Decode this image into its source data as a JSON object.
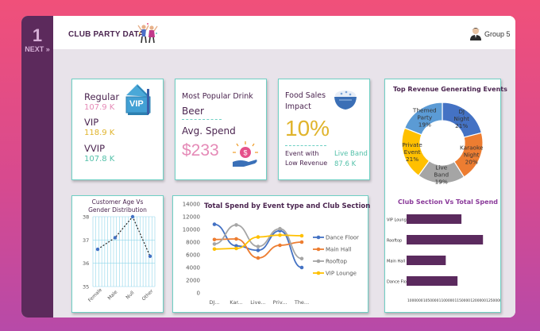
{
  "rail": {
    "number": "1",
    "next_label": "NEXT »"
  },
  "header": {
    "title": "CLUB PARTY DATA",
    "group_label": "Group 5"
  },
  "tiers": [
    {
      "label": "Regular",
      "value": "107.9 K",
      "color": "#e58ab7"
    },
    {
      "label": "VIP",
      "value": "118.9 K",
      "color": "#e0b42c"
    },
    {
      "label": "VVIP",
      "value": "107.8 K",
      "color": "#52c0a8"
    }
  ],
  "vip_sign": "VIP",
  "drink": {
    "title": "Most Popular Drink",
    "value": "Beer",
    "spend_label": "Avg. Spend",
    "spend_value": "$233"
  },
  "food": {
    "title": "Food Sales Impact",
    "percent": "10%",
    "low_label": "Event with Low Revenue",
    "event": "Live Band",
    "event_value": "87.6 K"
  },
  "colors": {
    "accent_teal": "#6fd0c4",
    "purple": "#5c2a5c",
    "bar_purple": "#5b2a5e"
  },
  "chart_data": [
    {
      "type": "pie",
      "title": "Top Revenue Generating Events",
      "slices": [
        {
          "label": "DJ Night",
          "percent": "21%",
          "value": 21,
          "color": "#4472c4"
        },
        {
          "label": "Karaoke Night",
          "percent": "20%",
          "value": 20,
          "color": "#ed7d31"
        },
        {
          "label": "Live Band",
          "percent": "19%",
          "value": 19,
          "color": "#a5a5a5"
        },
        {
          "label": "Private Event",
          "percent": "21%",
          "value": 21,
          "color": "#ffc000"
        },
        {
          "label": "Themed Party",
          "percent": "19%",
          "value": 19,
          "color": "#5b9bd5"
        }
      ]
    },
    {
      "type": "line",
      "title": "Customer Age Vs Gender Distribution",
      "categories": [
        "Female",
        "Male",
        "Null",
        "Other"
      ],
      "values": [
        36.6,
        37.1,
        38.0,
        36.3
      ],
      "ylim": [
        35,
        38
      ],
      "yticks": [
        "38",
        "37",
        "36",
        "35"
      ],
      "grid": true
    },
    {
      "type": "line",
      "title": "Total Spend by Event type and Club Section",
      "categories": [
        "DJ...",
        "Kar...",
        "Live...",
        "Priv...",
        "The..."
      ],
      "yticks": [
        "14000",
        "12000",
        "10000",
        "8000",
        "6000",
        "4000",
        "2000",
        "0"
      ],
      "ylim": [
        0,
        14000
      ],
      "series": [
        {
          "name": "Dance Floor",
          "values": [
            10800,
            7400,
            6700,
            9800,
            4000
          ],
          "color": "#4472c4"
        },
        {
          "name": "Main Hall",
          "values": [
            8400,
            8500,
            5500,
            7500,
            8000
          ],
          "color": "#ed7d31"
        },
        {
          "name": "Rooftop",
          "values": [
            7700,
            10700,
            7300,
            10100,
            5400
          ],
          "color": "#a5a5a5"
        },
        {
          "name": "VIP Lounge",
          "values": [
            6900,
            7000,
            8800,
            9100,
            9000
          ],
          "color": "#ffc000"
        }
      ]
    },
    {
      "type": "bar",
      "title": "Club Section Vs Total Spend",
      "categories": [
        "VIP Lounge",
        "Rooftop",
        "Main Hall",
        "Dance Floor"
      ],
      "values": [
        1080000,
        1190000,
        1000000,
        1060000
      ],
      "xlim": [
        800000,
        1250000
      ],
      "xticks": [
        "1000000",
        "1050000",
        "1100000",
        "1150000",
        "1200000",
        "1250000"
      ]
    }
  ]
}
